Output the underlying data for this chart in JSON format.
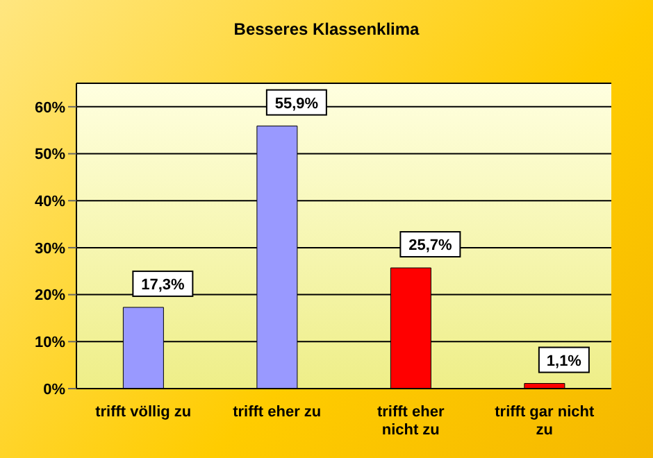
{
  "chart_data": {
    "type": "bar",
    "title": "Besseres Klassenklima",
    "categories": [
      "trifft völlig zu",
      "trifft eher zu",
      "trifft eher nicht zu",
      "trifft gar nicht zu"
    ],
    "values": [
      17.3,
      55.9,
      25.7,
      1.1
    ],
    "colors": [
      "#9999ff",
      "#9999ff",
      "#ff0000",
      "#ff0000"
    ],
    "value_labels": [
      "17,3%",
      "55,9%",
      "25,7%",
      "1,1%"
    ],
    "ylim": [
      0,
      65
    ],
    "yticks": [
      {
        "value": 0,
        "label": "0%"
      },
      {
        "value": 10,
        "label": "10%"
      },
      {
        "value": 20,
        "label": "20%"
      },
      {
        "value": 30,
        "label": "30%"
      },
      {
        "value": 40,
        "label": "40%"
      },
      {
        "value": 50,
        "label": "50%"
      },
      {
        "value": 60,
        "label": "60%"
      }
    ],
    "grid": "y"
  }
}
